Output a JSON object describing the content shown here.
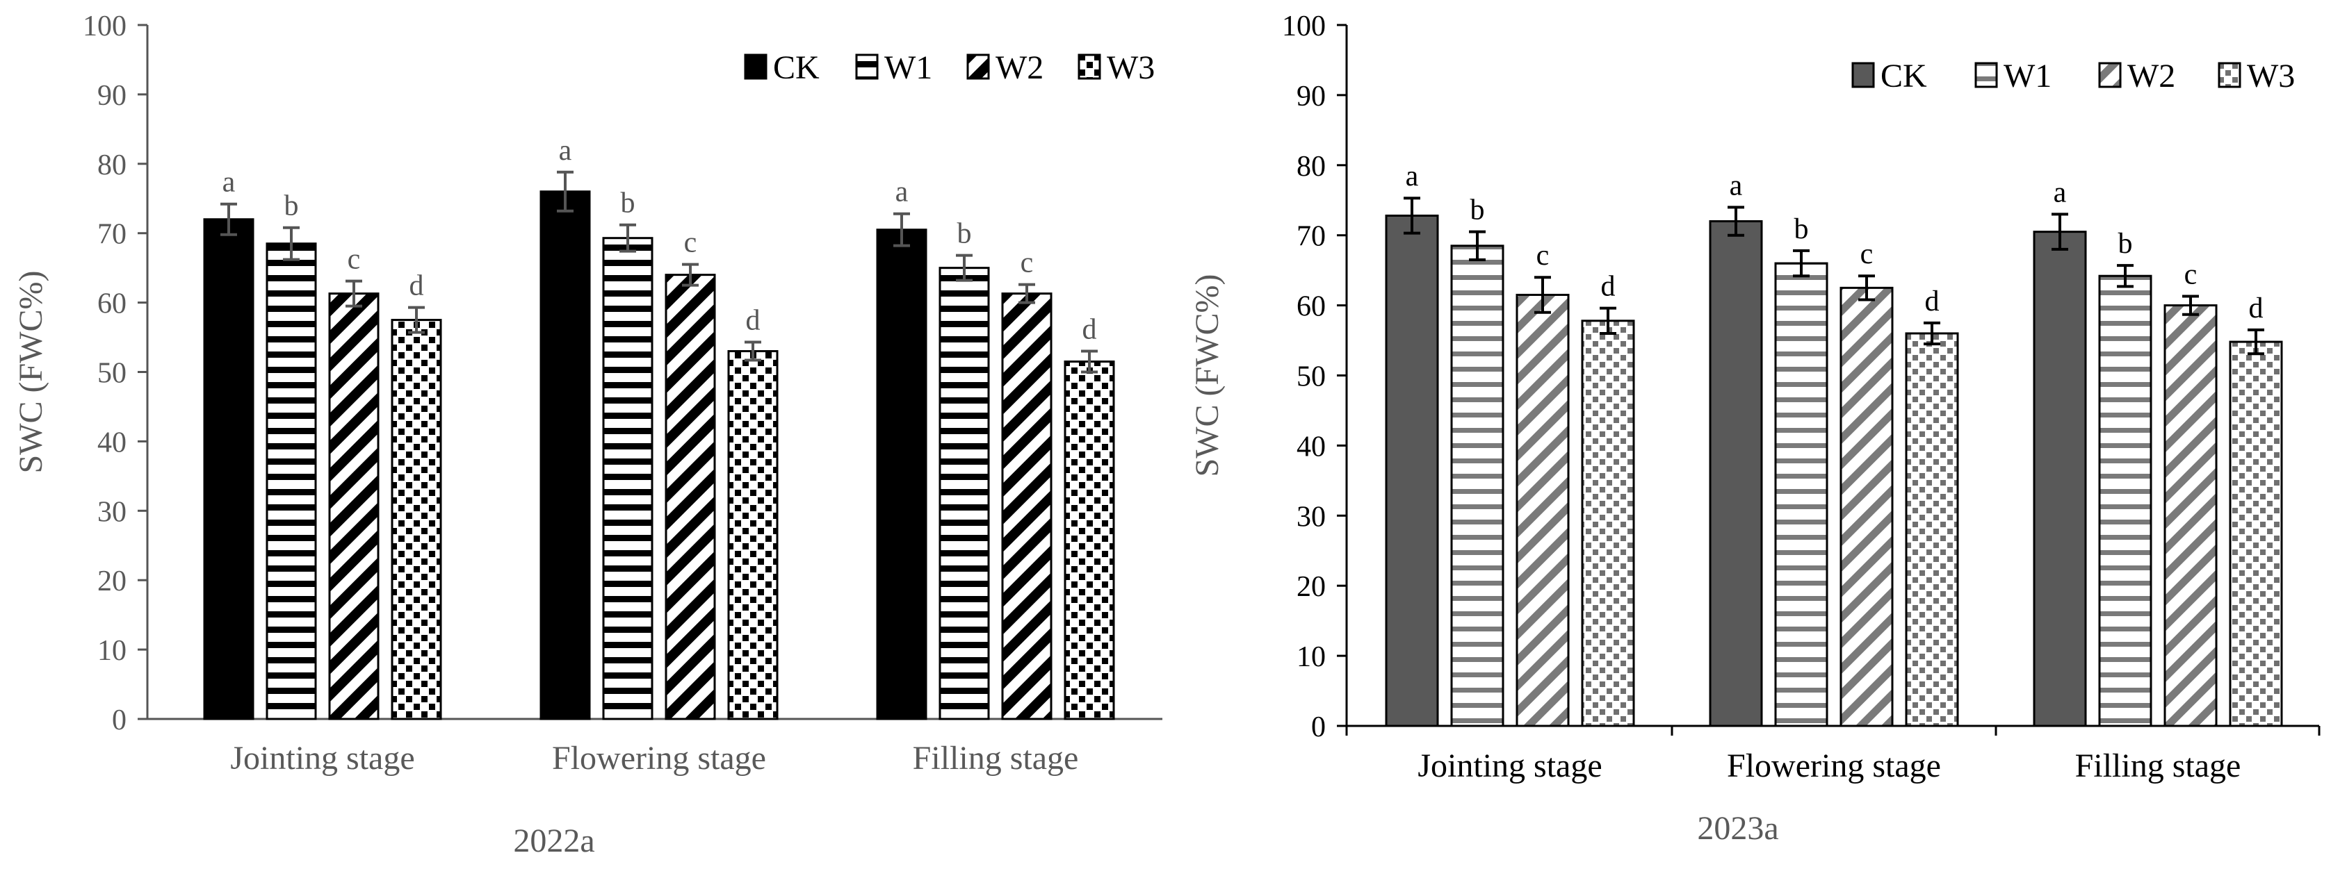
{
  "chart_data": [
    {
      "type": "bar",
      "title": "",
      "caption": "2022a",
      "xlabel": "",
      "ylabel": "SWC (FWC%)",
      "ylim": [
        0,
        100
      ],
      "yticks": [
        "0",
        "10",
        "20",
        "30",
        "40",
        "50",
        "60",
        "70",
        "80",
        "90",
        "100"
      ],
      "categories": [
        "Jointing stage",
        "Flowering stage",
        "Filling stage"
      ],
      "legend_position": "top-right",
      "grid": false,
      "series": [
        {
          "name": "CK",
          "values": [
            72.0,
            76.0,
            70.5
          ],
          "errors": [
            2.2,
            2.8,
            2.3
          ],
          "letters": [
            "a",
            "a",
            "a"
          ],
          "pattern": "solid-black"
        },
        {
          "name": "W1",
          "values": [
            68.5,
            69.3,
            65.0
          ],
          "errors": [
            2.3,
            1.9,
            1.8
          ],
          "letters": [
            "b",
            "b",
            "b"
          ],
          "pattern": "horizontal-lines"
        },
        {
          "name": "W2",
          "values": [
            61.3,
            64.0,
            61.3
          ],
          "errors": [
            1.8,
            1.5,
            1.3
          ],
          "letters": [
            "c",
            "c",
            "c"
          ],
          "pattern": "diagonal-stripes"
        },
        {
          "name": "W3",
          "values": [
            57.5,
            53.0,
            51.5
          ],
          "errors": [
            1.8,
            1.3,
            1.5
          ],
          "letters": [
            "d",
            "d",
            "d"
          ],
          "pattern": "dots"
        }
      ]
    },
    {
      "type": "bar",
      "title": "",
      "caption": "2023a",
      "xlabel": "",
      "ylabel": "SWC (FWC%)",
      "ylim": [
        0,
        100
      ],
      "yticks": [
        "0",
        "10",
        "20",
        "30",
        "40",
        "50",
        "60",
        "70",
        "80",
        "90",
        "100"
      ],
      "categories": [
        "Jointing stage",
        "Flowering stage",
        "Filling stage"
      ],
      "legend_position": "top-right",
      "grid": false,
      "series": [
        {
          "name": "CK",
          "values": [
            72.8,
            72.0,
            70.5
          ],
          "errors": [
            2.5,
            2.0,
            2.5
          ],
          "letters": [
            "a",
            "a",
            "a"
          ],
          "pattern": "solid-gray"
        },
        {
          "name": "W1",
          "values": [
            68.5,
            66.0,
            64.2
          ],
          "errors": [
            2.0,
            1.8,
            1.5
          ],
          "letters": [
            "b",
            "b",
            "b"
          ],
          "pattern": "horizontal-lines"
        },
        {
          "name": "W2",
          "values": [
            61.5,
            62.5,
            60.0
          ],
          "errors": [
            2.5,
            1.7,
            1.3
          ],
          "letters": [
            "c",
            "c",
            "c"
          ],
          "pattern": "diagonal-stripes"
        },
        {
          "name": "W3",
          "values": [
            57.8,
            56.0,
            54.8
          ],
          "errors": [
            1.8,
            1.5,
            1.7
          ],
          "letters": [
            "d",
            "d",
            "d"
          ],
          "pattern": "dots"
        }
      ]
    }
  ]
}
